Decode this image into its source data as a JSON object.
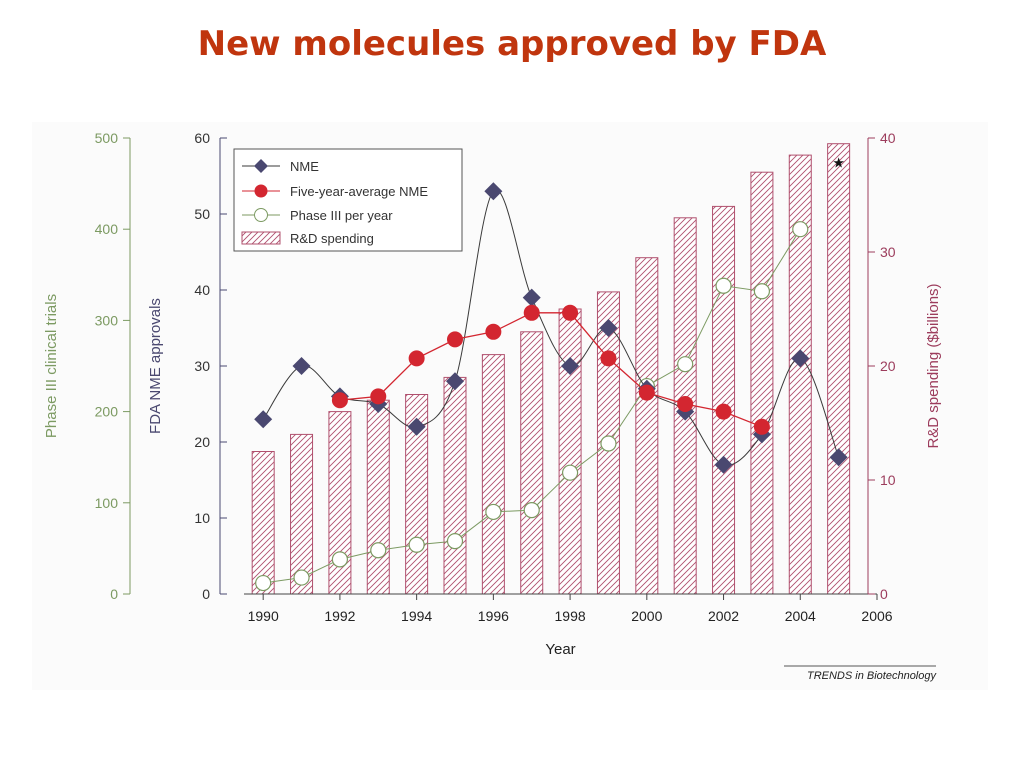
{
  "slide": {
    "title": "New molecules approved by FDA"
  },
  "source": "TRENDS in Biotechnology",
  "colors": {
    "title": "#c0350e",
    "nme": "#4a4870",
    "nme_line": "#3a3a3a",
    "five_year_avg": "#d32630",
    "phase3": "#7c9a62",
    "rd": "#b0506e",
    "axis_left_phase3": "#7c9a62",
    "axis_left_fda": "#4a4870",
    "axis_right_rd": "#9c3c5c"
  },
  "chart_data": {
    "type": "bar",
    "title": "",
    "xlabel": "Year",
    "x_ticks": [
      1990,
      1992,
      1994,
      1996,
      1998,
      2000,
      2002,
      2004,
      2006
    ],
    "xlim": [
      1989.5,
      2006
    ],
    "axes": {
      "left_outer": {
        "label": "Phase III clinical trials",
        "range": [
          0,
          500
        ],
        "ticks": [
          0,
          100,
          200,
          300,
          400,
          500
        ]
      },
      "left_inner": {
        "label": "FDA NME approvals",
        "range": [
          0,
          60
        ],
        "ticks": [
          0,
          10,
          20,
          30,
          40,
          50,
          60
        ]
      },
      "right": {
        "label": "R&D spending ($billions)",
        "range": [
          0,
          40
        ],
        "ticks": [
          0,
          10,
          20,
          30,
          40
        ]
      }
    },
    "legend": {
      "placement": "top-left",
      "entries": [
        "NME",
        "Five-year-average NME",
        "Phase III per year",
        "R&D spending"
      ]
    },
    "series": [
      {
        "name": "R&D spending",
        "kind": "bar",
        "axis": "right",
        "x": [
          1990,
          1991,
          1992,
          1993,
          1994,
          1995,
          1996,
          1997,
          1998,
          1999,
          2000,
          2001,
          2002,
          2003,
          2004,
          2005
        ],
        "values": [
          12.5,
          14,
          16,
          17,
          17.5,
          19,
          21,
          23,
          25,
          26.5,
          29.5,
          33,
          34,
          37,
          38.5,
          39.5
        ]
      },
      {
        "name": "NME",
        "kind": "line-diamond",
        "axis": "left_inner",
        "x": [
          1990,
          1991,
          1992,
          1993,
          1994,
          1995,
          1996,
          1997,
          1998,
          1999,
          2000,
          2001,
          2002,
          2003,
          2004,
          2005
        ],
        "values": [
          23,
          30,
          26,
          25,
          22,
          28,
          53,
          39,
          30,
          35,
          27,
          24,
          17,
          21,
          31,
          18
        ]
      },
      {
        "name": "Five-year-average NME",
        "kind": "line-dot",
        "axis": "left_inner",
        "x": [
          1992,
          1993,
          1994,
          1995,
          1996,
          1997,
          1998,
          1999,
          2000,
          2001,
          2002,
          2003
        ],
        "values": [
          25.5,
          26,
          31,
          33.5,
          34.5,
          37,
          37,
          31,
          26.5,
          25,
          24,
          22
        ]
      },
      {
        "name": "Phase III per year",
        "kind": "line-circle",
        "axis": "left_outer",
        "x": [
          1990,
          1991,
          1992,
          1993,
          1994,
          1995,
          1996,
          1997,
          1998,
          1999,
          2000,
          2001,
          2002,
          2003,
          2004
        ],
        "values": [
          12,
          18,
          38,
          48,
          54,
          58,
          90,
          92,
          133,
          165,
          228,
          252,
          338,
          332,
          400
        ]
      }
    ],
    "annotations": [
      {
        "symbol": "★",
        "x": 2005,
        "value": 38.2,
        "axis": "right"
      }
    ]
  }
}
